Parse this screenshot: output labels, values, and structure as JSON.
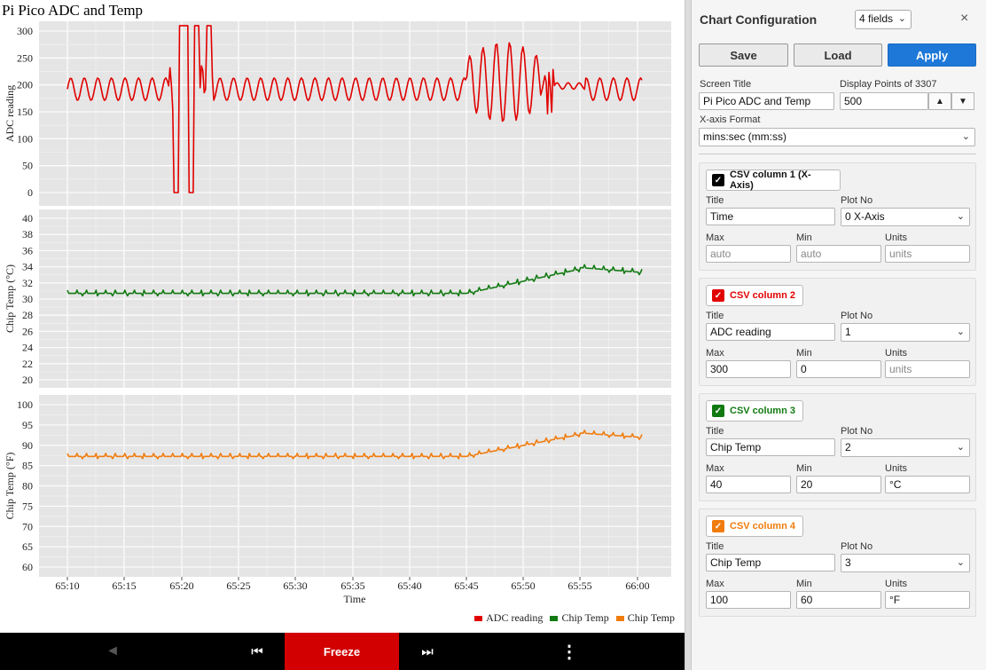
{
  "screen_title": "Pi Pico ADC and Temp",
  "chart_data": [
    {
      "type": "line",
      "ylabel": "ADC reading",
      "ylim": [
        0,
        300
      ],
      "yticks": [
        0,
        50,
        100,
        150,
        200,
        250,
        300
      ],
      "series": [
        {
          "name": "ADC reading",
          "color": "#e00000",
          "pattern": "adc"
        }
      ]
    },
    {
      "type": "line",
      "ylabel": "Chip Temp (°C)",
      "ylim": [
        20,
        40
      ],
      "yticks": [
        20,
        22,
        24,
        26,
        28,
        30,
        32,
        34,
        36,
        38,
        40
      ],
      "series": [
        {
          "name": "Chip Temp",
          "color": "#127a12",
          "pattern": "tempC"
        }
      ]
    },
    {
      "type": "line",
      "ylabel": "Chip Temp (°F)",
      "xlabel": "Time",
      "ylim": [
        60,
        100
      ],
      "yticks": [
        60,
        65,
        70,
        75,
        80,
        85,
        90,
        95,
        100
      ],
      "xticks": [
        "65:10",
        "65:15",
        "65:20",
        "65:25",
        "65:30",
        "65:35",
        "65:40",
        "65:45",
        "65:50",
        "65:55",
        "66:00"
      ],
      "series": [
        {
          "name": "Chip Temp",
          "color": "#f07c0e",
          "pattern": "tempF"
        }
      ]
    }
  ],
  "legend": [
    {
      "label": "ADC reading",
      "color": "#e00000"
    },
    {
      "label": "Chip Temp",
      "color": "#127a12"
    },
    {
      "label": "Chip Temp",
      "color": "#f07c0e"
    }
  ],
  "controls": {
    "back_icon": "◄",
    "first_icon": "⏮",
    "freeze_label": "Freeze",
    "last_icon": "⏭",
    "menu_icon": "⋮"
  },
  "config": {
    "title": "Chart Configuration",
    "fields_selected": "4 fields",
    "close_icon": "×",
    "save_label": "Save",
    "load_label": "Load",
    "apply_label": "Apply",
    "screen_title_label": "Screen Title",
    "screen_title_value": "Pi Pico ADC and Temp",
    "display_points_label": "Display Points of 3307",
    "display_points_value": "500",
    "step_up_icon": "▲",
    "step_down_icon": "▼",
    "x_format_label": "X-axis Format",
    "x_format_value": "mins:sec (mm:ss)",
    "chevron": "⌄",
    "labels": {
      "title": "Title",
      "plot_no": "Plot No",
      "max": "Max",
      "min": "Min",
      "units": "Units"
    },
    "columns": [
      {
        "tag": "CSV column 1 (X-Axis)",
        "color": "#000000",
        "title": "Time",
        "plot_no": "0 X-Axis",
        "max": "",
        "max_placeholder": "auto",
        "min": "",
        "min_placeholder": "auto",
        "units": "",
        "units_placeholder": "units"
      },
      {
        "tag": "CSV column 2",
        "color": "#e00000",
        "title": "ADC reading",
        "plot_no": "1",
        "max": "300",
        "max_placeholder": "",
        "min": "0",
        "min_placeholder": "",
        "units": "",
        "units_placeholder": "units"
      },
      {
        "tag": "CSV column 3",
        "color": "#127a12",
        "title": "Chip Temp",
        "plot_no": "2",
        "max": "40",
        "max_placeholder": "",
        "min": "20",
        "min_placeholder": "",
        "units": "°C",
        "units_placeholder": ""
      },
      {
        "tag": "CSV column 4",
        "color": "#f07c0e",
        "title": "Chip Temp",
        "plot_no": "3",
        "max": "100",
        "max_placeholder": "",
        "min": "60",
        "min_placeholder": "",
        "units": "°F",
        "units_placeholder": ""
      }
    ]
  }
}
